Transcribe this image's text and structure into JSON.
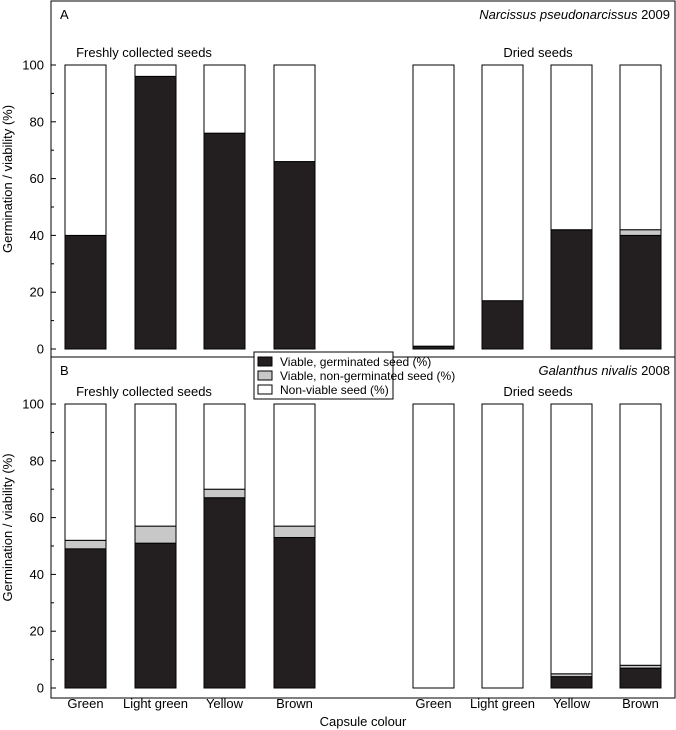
{
  "chart_data": [
    {
      "panel": "A",
      "type": "bar",
      "stacked": true,
      "title_species": "Narcissus pseudonarcissus",
      "title_year": "2009",
      "ylabel": "Germination / viability (%)",
      "xlabel": "",
      "ylim": [
        0,
        100
      ],
      "yticks": [
        "0",
        "20",
        "40",
        "60",
        "80",
        "100"
      ],
      "groups": [
        "Freshly collected seeds",
        "Dried seeds"
      ],
      "categories": [
        "Green",
        "Light green",
        "Yellow",
        "Brown",
        "Green",
        "Light green",
        "Yellow",
        "Brown"
      ],
      "series": [
        {
          "name": "Viable, germinated seed (%)",
          "values": [
            40,
            96,
            76,
            66,
            1,
            17,
            42,
            40
          ]
        },
        {
          "name": "Viable, non-germinated seed (%)",
          "values": [
            0,
            0,
            0,
            0,
            0,
            0,
            0,
            2
          ]
        },
        {
          "name": "Non-viable seed (%)",
          "values": [
            60,
            4,
            24,
            34,
            99,
            83,
            58,
            58
          ]
        }
      ]
    },
    {
      "panel": "B",
      "type": "bar",
      "stacked": true,
      "title_species": "Galanthus nivalis",
      "title_year": "2008",
      "ylabel": "Germination / viability (%)",
      "xlabel": "Capsule colour",
      "ylim": [
        0,
        100
      ],
      "yticks": [
        "0",
        "20",
        "40",
        "60",
        "80",
        "100"
      ],
      "groups": [
        "Freshly collected seeds",
        "Dried seeds"
      ],
      "categories": [
        "Green",
        "Light green",
        "Yellow",
        "Brown",
        "Green",
        "Light green",
        "Yellow",
        "Brown"
      ],
      "series": [
        {
          "name": "Viable, germinated seed (%)",
          "values": [
            49,
            51,
            67,
            53,
            0,
            0,
            4,
            7
          ]
        },
        {
          "name": "Viable, non-germinated seed (%)",
          "values": [
            3,
            6,
            3,
            4,
            0,
            0,
            1,
            1
          ]
        },
        {
          "name": "Non-viable seed (%)",
          "values": [
            48,
            43,
            30,
            43,
            100,
            100,
            95,
            92
          ]
        }
      ]
    }
  ],
  "legend": [
    {
      "label": "Viable, germinated seed (%)",
      "color": "#231f20"
    },
    {
      "label": "Viable, non-germinated seed (%)",
      "color": "#c8c8c8"
    },
    {
      "label": "Non-viable seed (%)",
      "color": "#ffffff"
    }
  ]
}
